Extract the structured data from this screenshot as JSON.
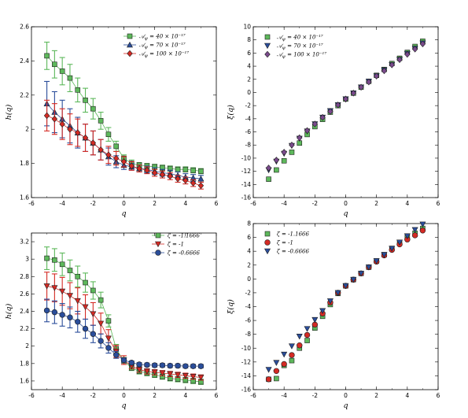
{
  "colors": {
    "green": "#5db85b",
    "blue": "#2a4d9a",
    "red": "#d42a24",
    "purple": "#7a4a8c"
  },
  "chart_data": [
    {
      "type": "line",
      "title": "",
      "xlabel": "q",
      "ylabel": "h(q)",
      "xlim": [
        -6,
        6
      ],
      "ylim": [
        1.6,
        2.6
      ],
      "xticks": [
        "-6",
        "-4",
        "-2",
        "0",
        "2",
        "4",
        "6"
      ],
      "yticks": [
        "1.6",
        "1.8",
        "2",
        "2.2",
        "2.4",
        "2.6"
      ],
      "legend_position": "top-right",
      "x": [
        -5,
        -4.5,
        -4,
        -3.5,
        -3,
        -2.5,
        -2,
        -1.5,
        -1,
        -0.5,
        0,
        0.5,
        1,
        1.5,
        2,
        2.5,
        3,
        3.5,
        4,
        4.5,
        5
      ],
      "series": [
        {
          "name": "𝒜_ψ = 40 × 10⁻¹⁷",
          "color": "green",
          "marker": "square",
          "values": [
            2.43,
            2.38,
            2.34,
            2.3,
            2.23,
            2.17,
            2.12,
            2.05,
            1.97,
            1.9,
            1.83,
            1.8,
            1.79,
            1.785,
            1.78,
            1.775,
            1.77,
            1.765,
            1.765,
            1.76,
            1.755
          ],
          "errors": [
            0.08,
            0.08,
            0.08,
            0.08,
            0.07,
            0.07,
            0.06,
            0.05,
            0.04,
            0.03,
            0.02,
            0.02,
            0.015,
            0.015,
            0.015,
            0.015,
            0.015,
            0.015,
            0.015,
            0.015,
            0.015
          ]
        },
        {
          "name": "𝒜_ψ = 70 × 10⁻¹⁷",
          "color": "blue",
          "marker": "triangle-up",
          "values": [
            2.15,
            2.1,
            2.06,
            2.02,
            1.98,
            1.95,
            1.92,
            1.88,
            1.84,
            1.81,
            1.79,
            1.78,
            1.77,
            1.765,
            1.755,
            1.745,
            1.74,
            1.73,
            1.72,
            1.715,
            1.71
          ],
          "errors": [
            0.13,
            0.12,
            0.11,
            0.1,
            0.09,
            0.08,
            0.07,
            0.06,
            0.05,
            0.035,
            0.025,
            0.02,
            0.02,
            0.02,
            0.02,
            0.02,
            0.02,
            0.02,
            0.02,
            0.02,
            0.02
          ]
        },
        {
          "name": "𝒜_ψ = 100 × 10⁻¹⁷",
          "color": "red",
          "marker": "diamond",
          "values": [
            2.08,
            2.06,
            2.03,
            2.0,
            1.98,
            1.95,
            1.92,
            1.88,
            1.85,
            1.83,
            1.81,
            1.785,
            1.77,
            1.76,
            1.745,
            1.735,
            1.725,
            1.71,
            1.7,
            1.685,
            1.67
          ],
          "errors": [
            0.09,
            0.09,
            0.09,
            0.09,
            0.08,
            0.08,
            0.07,
            0.06,
            0.05,
            0.04,
            0.03,
            0.025,
            0.02,
            0.02,
            0.02,
            0.02,
            0.02,
            0.02,
            0.02,
            0.02,
            0.02
          ]
        }
      ]
    },
    {
      "type": "scatter",
      "title": "",
      "xlabel": "q",
      "ylabel": "ξ(q)",
      "xlim": [
        -6,
        6
      ],
      "ylim": [
        -16,
        10
      ],
      "xticks": [
        "-6",
        "-4",
        "-2",
        "0",
        "2",
        "4",
        "6"
      ],
      "yticks": [
        "-16",
        "-14",
        "-12",
        "-10",
        "-8",
        "-6",
        "-4",
        "-2",
        "0",
        "2",
        "4",
        "6",
        "8",
        "10"
      ],
      "legend_position": "top-left",
      "x": [
        -5,
        -4.5,
        -4,
        -3.5,
        -3,
        -2.5,
        -2,
        -1.5,
        -1,
        -0.5,
        0,
        0.5,
        1,
        1.5,
        2,
        2.5,
        3,
        3.5,
        4,
        4.5,
        5
      ],
      "series": [
        {
          "name": "𝒜_ψ = 40 × 10⁻¹⁷",
          "color": "green",
          "marker": "square",
          "values": [
            -13.2,
            -11.8,
            -10.4,
            -9.1,
            -7.7,
            -6.4,
            -5.2,
            -4.1,
            -3.0,
            -2.0,
            -1.0,
            -0.1,
            0.8,
            1.7,
            2.6,
            3.5,
            4.4,
            5.2,
            6.1,
            7.0,
            7.8
          ]
        },
        {
          "name": "𝒜_ψ = 70 × 10⁻¹⁷",
          "color": "blue",
          "marker": "triangle-down",
          "values": [
            -11.8,
            -10.5,
            -9.3,
            -8.1,
            -7.0,
            -5.9,
            -4.8,
            -3.8,
            -2.8,
            -1.9,
            -1.0,
            -0.1,
            0.8,
            1.7,
            2.5,
            3.4,
            4.2,
            5.0,
            5.9,
            6.7,
            7.5
          ]
        },
        {
          "name": "𝒜_ψ = 100 × 10⁻¹⁷",
          "color": "purple",
          "marker": "diamond",
          "values": [
            -11.5,
            -10.3,
            -9.1,
            -8.0,
            -6.9,
            -5.8,
            -4.8,
            -3.8,
            -2.9,
            -1.9,
            -1.0,
            -0.1,
            0.8,
            1.6,
            2.5,
            3.3,
            4.2,
            5.0,
            5.8,
            6.6,
            7.4
          ]
        }
      ]
    },
    {
      "type": "line",
      "title": "",
      "xlabel": "q",
      "ylabel": "h(q)",
      "xlim": [
        -6,
        6
      ],
      "ylim": [
        1.5,
        3.3
      ],
      "xticks": [
        "-6",
        "-4",
        "-2",
        "0",
        "2",
        "4",
        "6"
      ],
      "yticks": [
        "1.6",
        "1.8",
        "2",
        "2.2",
        "2.4",
        "2.6",
        "2.8",
        "3",
        "3.2"
      ],
      "legend_position": "top-right",
      "x": [
        -5,
        -4.5,
        -4,
        -3.5,
        -3,
        -2.5,
        -2,
        -1.5,
        -1,
        -0.5,
        0,
        0.5,
        1,
        1.5,
        2,
        2.5,
        3,
        3.5,
        4,
        4.5,
        5
      ],
      "series": [
        {
          "name": "ζ  = -1.1666",
          "color": "green",
          "marker": "square",
          "values": [
            3.01,
            2.99,
            2.94,
            2.87,
            2.8,
            2.73,
            2.64,
            2.53,
            2.29,
            1.97,
            1.83,
            1.75,
            1.71,
            1.69,
            1.67,
            1.65,
            1.63,
            1.62,
            1.61,
            1.6,
            1.59
          ],
          "errors": [
            0.13,
            0.13,
            0.13,
            0.12,
            0.12,
            0.11,
            0.1,
            0.09,
            0.07,
            0.05,
            0.04,
            0.03,
            0.03,
            0.03,
            0.03,
            0.03,
            0.03,
            0.03,
            0.03,
            0.03,
            0.03
          ]
        },
        {
          "name": "ζ  = -1",
          "color": "red",
          "marker": "triangle-down",
          "values": [
            2.69,
            2.67,
            2.63,
            2.58,
            2.52,
            2.45,
            2.37,
            2.26,
            2.09,
            1.94,
            1.84,
            1.77,
            1.73,
            1.71,
            1.7,
            1.69,
            1.68,
            1.67,
            1.66,
            1.65,
            1.64
          ],
          "errors": [
            0.16,
            0.16,
            0.16,
            0.15,
            0.15,
            0.14,
            0.13,
            0.12,
            0.1,
            0.07,
            0.05,
            0.03,
            0.03,
            0.03,
            0.03,
            0.03,
            0.03,
            0.03,
            0.03,
            0.03,
            0.03
          ]
        },
        {
          "name": "ζ  = -0.6666",
          "color": "blue",
          "marker": "circle",
          "values": [
            2.41,
            2.39,
            2.36,
            2.33,
            2.28,
            2.2,
            2.14,
            2.06,
            1.98,
            1.9,
            1.84,
            1.81,
            1.79,
            1.785,
            1.78,
            1.78,
            1.775,
            1.775,
            1.77,
            1.77,
            1.77
          ],
          "errors": [
            0.13,
            0.13,
            0.13,
            0.12,
            0.12,
            0.11,
            0.1,
            0.08,
            0.06,
            0.04,
            0.025,
            0.02,
            0.02,
            0.02,
            0.02,
            0.02,
            0.02,
            0.02,
            0.02,
            0.02,
            0.02
          ]
        }
      ]
    },
    {
      "type": "scatter",
      "title": "",
      "xlabel": "q",
      "ylabel": "ξ(q)",
      "xlim": [
        -6,
        6
      ],
      "ylim": [
        -16,
        8
      ],
      "xticks": [
        "-6",
        "-4",
        "-2",
        "0",
        "2",
        "4",
        "6"
      ],
      "yticks": [
        "-16",
        "-14",
        "-12",
        "-10",
        "-8",
        "-6",
        "-4",
        "-2",
        "0",
        "2",
        "4",
        "6",
        "8"
      ],
      "legend_position": "top-left",
      "x": [
        -5,
        -4.5,
        -4,
        -3.5,
        -3,
        -2.5,
        -2,
        -1.5,
        -1,
        -0.5,
        0,
        0.5,
        1,
        1.5,
        2,
        2.5,
        3,
        3.5,
        4,
        4.5,
        5
      ],
      "series": [
        {
          "name": "ζ  = -1.1666",
          "color": "green",
          "marker": "square",
          "values": [
            -14.5,
            -14.4,
            -12.5,
            -11.8,
            -10.0,
            -8.9,
            -7.1,
            -5.4,
            -3.7,
            -2.1,
            -1.0,
            -0.1,
            0.8,
            1.7,
            2.6,
            3.5,
            4.4,
            5.2,
            6.0,
            6.6,
            7.3
          ]
        },
        {
          "name": "ζ  = -1",
          "color": "red",
          "marker": "circle",
          "values": [
            -14.5,
            -13.3,
            -12.3,
            -11.0,
            -9.6,
            -8.1,
            -6.6,
            -5.0,
            -3.4,
            -2.0,
            -1.0,
            -0.1,
            0.8,
            1.7,
            2.5,
            3.4,
            4.2,
            5.0,
            5.7,
            6.3,
            7.0
          ]
        },
        {
          "name": "ζ  = -0.6666",
          "color": "blue",
          "marker": "triangle-down",
          "values": [
            -13.1,
            -12.1,
            -10.9,
            -9.7,
            -8.3,
            -7.2,
            -5.9,
            -4.6,
            -3.2,
            -2.0,
            -1.0,
            -0.1,
            0.8,
            1.7,
            2.6,
            3.5,
            4.4,
            5.3,
            6.2,
            7.1,
            7.9
          ]
        }
      ]
    }
  ]
}
